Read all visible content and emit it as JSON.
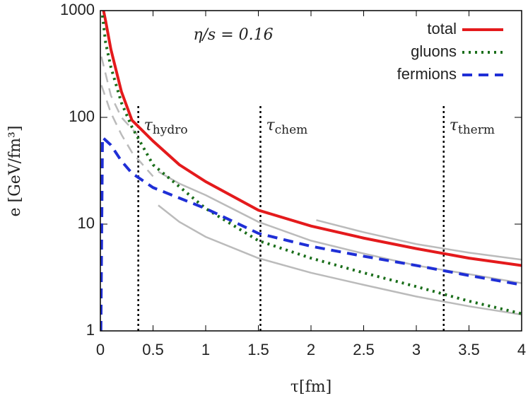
{
  "chart_data": {
    "type": "line",
    "annotation": "η/s = 0.16",
    "x_label": "τ[fm]",
    "y_label": "e [GeV/fm³]",
    "xlim": [
      0,
      4
    ],
    "xticks": [
      0,
      0.5,
      1,
      1.5,
      2,
      2.5,
      3,
      3.5,
      4
    ],
    "ylim": [
      1,
      1000
    ],
    "yticks": [
      1,
      10,
      100,
      1000
    ],
    "log_y": true,
    "legend": "upper right",
    "vlines": [
      {
        "x": 0.36,
        "label": "τ",
        "sub": "hydro"
      },
      {
        "x": 1.52,
        "label": "τ",
        "sub": "chem"
      },
      {
        "x": 3.26,
        "label": "τ",
        "sub": "therm"
      }
    ],
    "series": [
      {
        "color": "#bbbbbb",
        "dash": "solid",
        "x": [
          2.05,
          2.5,
          3,
          3.5,
          4
        ],
        "values": [
          10.9,
          8.4,
          6.5,
          5.4,
          4.65
        ]
      },
      {
        "color": "#bbbbbb",
        "dash": "solid",
        "x": [
          0.55,
          0.75,
          1,
          1.5,
          2,
          2.5,
          3,
          3.5,
          4
        ],
        "values": [
          31,
          24,
          18.7,
          10.5,
          7,
          5.3,
          4.1,
          3.4,
          2.8
        ]
      },
      {
        "color": "#bbbbbb",
        "dash": "solid",
        "x": [
          0.55,
          0.75,
          1,
          1.5,
          2,
          2.5,
          3,
          3.5,
          4
        ],
        "values": [
          15,
          10.5,
          7.6,
          4.8,
          3.5,
          2.7,
          2.1,
          1.7,
          1.42
        ]
      },
      {
        "color": "#bbbbbb",
        "dash": "dashed",
        "x": [
          0.01,
          0.1,
          0.2,
          0.3,
          0.5
        ],
        "values": [
          200,
          110,
          69,
          47,
          28
        ]
      },
      {
        "color": "#bbbbbb",
        "dash": "dashed",
        "x": [
          0.01,
          0.1,
          0.2,
          0.35
        ],
        "values": [
          370,
          160,
          100,
          69
        ]
      },
      {
        "name": "total",
        "color": "#e41a1c",
        "dash": "solid",
        "x": [
          0.03,
          0.05,
          0.1,
          0.2,
          0.3,
          0.5,
          0.75,
          1,
          1.5,
          2,
          2.5,
          3,
          3.5,
          4
        ],
        "values": [
          1000,
          800,
          433,
          174,
          94,
          60,
          36,
          25,
          13.5,
          9.6,
          7.4,
          5.9,
          4.8,
          4.1
        ]
      },
      {
        "name": "gluons",
        "color": "#1a6e1a",
        "dash": "dotted",
        "x": [
          0.02,
          0.05,
          0.1,
          0.2,
          0.3,
          0.5,
          1,
          1.5,
          2,
          2.5,
          3,
          3.5,
          4
        ],
        "values": [
          900,
          500,
          295,
          137,
          81,
          36,
          14,
          7,
          4.8,
          3.5,
          2.6,
          1.9,
          1.45
        ]
      },
      {
        "name": "fermions",
        "color": "#1f2fd6",
        "dash": "dashed",
        "x": [
          0.005,
          0.02,
          0.1,
          0.2,
          0.3,
          0.5,
          1,
          1.5,
          2,
          2.5,
          3,
          3.5,
          4
        ],
        "values": [
          1,
          65,
          55,
          39,
          30,
          22,
          14,
          8.2,
          6.2,
          5,
          4.1,
          3.3,
          2.7
        ]
      }
    ]
  }
}
